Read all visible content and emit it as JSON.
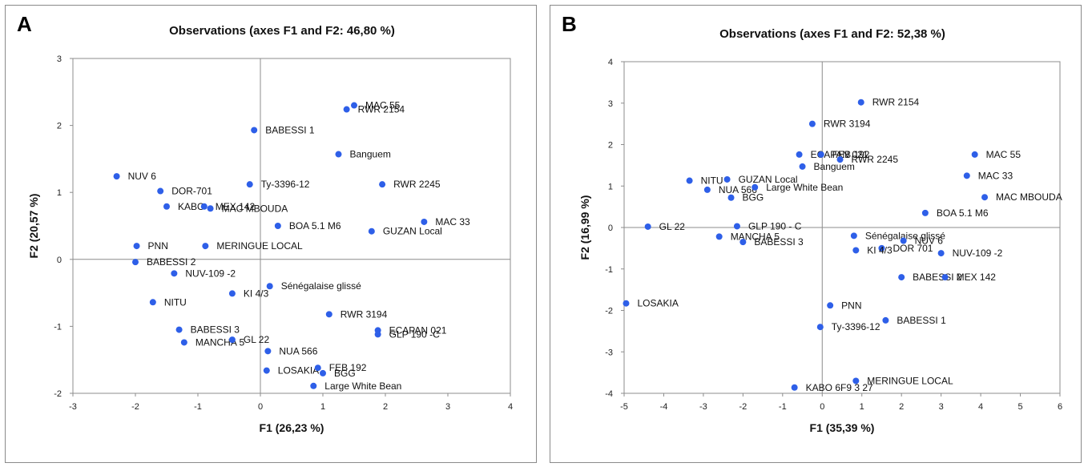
{
  "chart_data": [
    {
      "panel": "A",
      "type": "scatter",
      "title": "Observations (axes F1 and F2: 46,80 %)",
      "xlabel": "F1 (26,23 %)",
      "ylabel": "F2 (20,57 %)",
      "xlim": [
        -3,
        4
      ],
      "ylim": [
        -2,
        3
      ],
      "xticks": [
        "-3",
        "-2",
        "-1",
        "0",
        "1",
        "2",
        "3",
        "4"
      ],
      "yticks": [
        "-2",
        "-1",
        "0",
        "1",
        "2",
        "3"
      ],
      "marker_color": "#2e5fe8",
      "points": [
        {
          "label": "MAC 55",
          "x": 1.5,
          "y": 2.3
        },
        {
          "label": "RWR 2154",
          "x": 1.38,
          "y": 2.24
        },
        {
          "label": "BABESSI 1",
          "x": -0.1,
          "y": 1.93
        },
        {
          "label": "Banguem",
          "x": 1.25,
          "y": 1.57
        },
        {
          "label": "NUV 6",
          "x": -2.3,
          "y": 1.24
        },
        {
          "label": "Ty-3396-12",
          "x": -0.17,
          "y": 1.12
        },
        {
          "label": "RWR 2245",
          "x": 1.95,
          "y": 1.12
        },
        {
          "label": "DOR-701",
          "x": -1.6,
          "y": 1.02
        },
        {
          "label": "KABO",
          "x": -1.5,
          "y": 0.79
        },
        {
          "label": "MEX 142",
          "x": -0.9,
          "y": 0.79
        },
        {
          "label": "MAC MBOUDA",
          "x": -0.8,
          "y": 0.76
        },
        {
          "label": "MAC 33",
          "x": 2.62,
          "y": 0.56
        },
        {
          "label": "BOA 5.1 M6",
          "x": 0.28,
          "y": 0.5
        },
        {
          "label": "GUZAN Local",
          "x": 1.78,
          "y": 0.42
        },
        {
          "label": "PNN",
          "x": -1.98,
          "y": 0.2
        },
        {
          "label": "MERINGUE LOCAL",
          "x": -0.88,
          "y": 0.2
        },
        {
          "label": "BABESSI 2",
          "x": -2.0,
          "y": -0.04
        },
        {
          "label": "NUV-109 -2",
          "x": -1.38,
          "y": -0.21
        },
        {
          "label": "Sénégalaise glissé",
          "x": 0.15,
          "y": -0.4
        },
        {
          "label": "KI 4/3",
          "x": -0.45,
          "y": -0.51
        },
        {
          "label": "NITU",
          "x": -1.72,
          "y": -0.64
        },
        {
          "label": "RWR 3194",
          "x": 1.1,
          "y": -0.82
        },
        {
          "label": "BABESSI 3",
          "x": -1.3,
          "y": -1.05
        },
        {
          "label": "ECAPAN 021",
          "x": 1.88,
          "y": -1.06
        },
        {
          "label": "GLP 190 -C",
          "x": 1.88,
          "y": -1.12
        },
        {
          "label": "MANCHA 5",
          "x": -1.22,
          "y": -1.24
        },
        {
          "label": "GL 22",
          "x": -0.45,
          "y": -1.2
        },
        {
          "label": "NUA 566",
          "x": 0.12,
          "y": -1.37
        },
        {
          "label": "LOSAKIA",
          "x": 0.1,
          "y": -1.66
        },
        {
          "label": "FEB 192",
          "x": 0.92,
          "y": -1.62
        },
        {
          "label": "BGG",
          "x": 1.0,
          "y": -1.7
        },
        {
          "label": "Large White Bean",
          "x": 0.85,
          "y": -1.89
        }
      ]
    },
    {
      "panel": "B",
      "type": "scatter",
      "title": "Observations (axes F1 and F2: 52,38 %)",
      "xlabel": "F1 (35,39 %)",
      "ylabel": "F2 (16,99 %)",
      "xlim": [
        -5,
        6
      ],
      "ylim": [
        -4,
        4
      ],
      "xticks": [
        "-5",
        "-4",
        "-3",
        "-2",
        "-1",
        "0",
        "1",
        "2",
        "3",
        "4",
        "5",
        "6"
      ],
      "yticks": [
        "-4",
        "-3",
        "-2",
        "-1",
        "0",
        "1",
        "2",
        "3",
        "4"
      ],
      "marker_color": "#2e5fe8",
      "points": [
        {
          "label": "RWR 2154",
          "x": 0.98,
          "y": 3.02
        },
        {
          "label": "RWR 3194",
          "x": -0.25,
          "y": 2.5
        },
        {
          "label": "ECAPAN 021",
          "x": -0.58,
          "y": 1.76
        },
        {
          "label": "FEB 192",
          "x": -0.03,
          "y": 1.76
        },
        {
          "label": "RWR 2245",
          "x": 0.45,
          "y": 1.64
        },
        {
          "label": "Banguem",
          "x": -0.5,
          "y": 1.47
        },
        {
          "label": "MAC 55",
          "x": 3.85,
          "y": 1.76
        },
        {
          "label": "MAC 33",
          "x": 3.65,
          "y": 1.25
        },
        {
          "label": "MAC MBOUDA",
          "x": 4.1,
          "y": 0.73
        },
        {
          "label": "NITU",
          "x": -3.35,
          "y": 1.13
        },
        {
          "label": "GUZAN Local",
          "x": -2.4,
          "y": 1.16
        },
        {
          "label": "NUA 566",
          "x": -2.9,
          "y": 0.91
        },
        {
          "label": "Large White Bean",
          "x": -1.7,
          "y": 0.97
        },
        {
          "label": "BGG",
          "x": -2.3,
          "y": 0.72
        },
        {
          "label": "BOA 5.1 M6",
          "x": 2.6,
          "y": 0.35
        },
        {
          "label": "GL 22",
          "x": -4.4,
          "y": 0.02
        },
        {
          "label": "GLP 190 - C",
          "x": -2.15,
          "y": 0.03
        },
        {
          "label": "MANCHA 5",
          "x": -2.6,
          "y": -0.22
        },
        {
          "label": "BABESSI 3",
          "x": -2.0,
          "y": -0.35
        },
        {
          "label": "Sénégalaise glissé",
          "x": 0.8,
          "y": -0.2
        },
        {
          "label": "NUV 6",
          "x": 2.05,
          "y": -0.32
        },
        {
          "label": "DOR 701",
          "x": 1.5,
          "y": -0.5
        },
        {
          "label": "KI 4/3",
          "x": 0.85,
          "y": -0.55
        },
        {
          "label": "NUV-109 -2",
          "x": 3.0,
          "y": -0.62
        },
        {
          "label": "BABESSI 2",
          "x": 2.0,
          "y": -1.2
        },
        {
          "label": "MEX 142",
          "x": 3.1,
          "y": -1.2
        },
        {
          "label": "LOSAKIA",
          "x": -4.95,
          "y": -1.83
        },
        {
          "label": "PNN",
          "x": 0.2,
          "y": -1.88
        },
        {
          "label": "BABESSI 1",
          "x": 1.6,
          "y": -2.24
        },
        {
          "label": "Ty-3396-12",
          "x": -0.05,
          "y": -2.4
        },
        {
          "label": "MERINGUE LOCAL",
          "x": 0.85,
          "y": -3.7
        },
        {
          "label": "KABO 6F9 3 27",
          "x": -0.7,
          "y": -3.86
        }
      ]
    }
  ]
}
